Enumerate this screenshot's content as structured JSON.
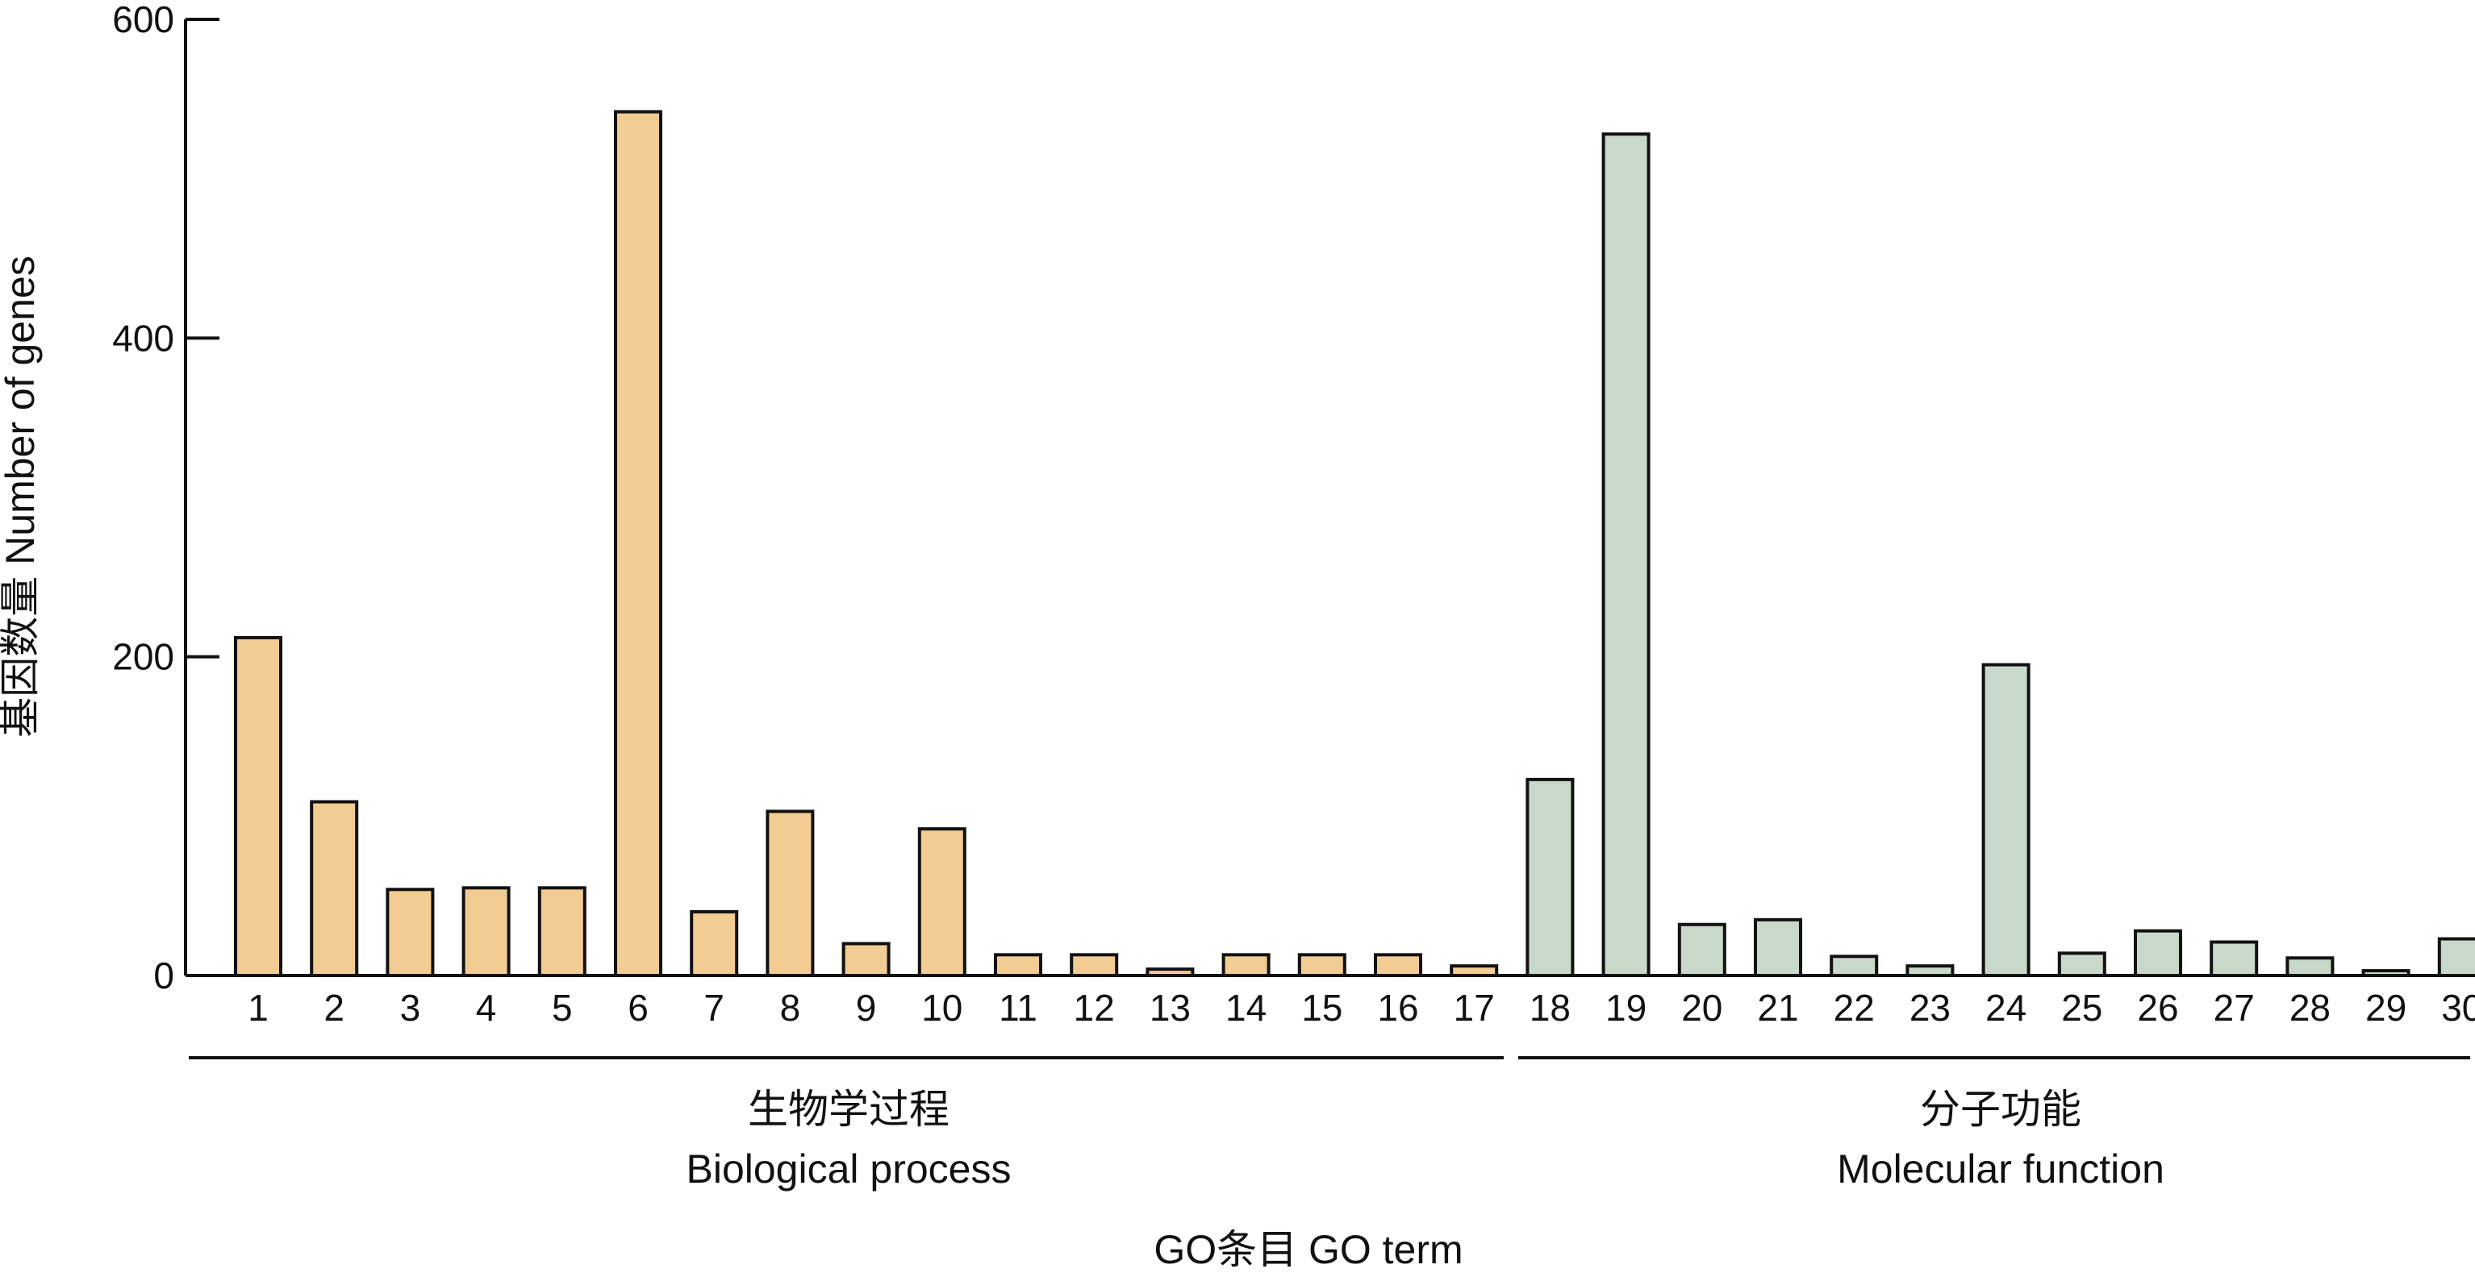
{
  "chart_data": {
    "type": "bar",
    "title": "",
    "xlabel": "GO条目 GO term",
    "ylabel": "基因数量 Number of genes",
    "ylim": [
      0,
      600
    ],
    "yticks": [
      0,
      200,
      400,
      600
    ],
    "grid": false,
    "legend": "none",
    "categories": [
      "1",
      "2",
      "3",
      "4",
      "5",
      "6",
      "7",
      "8",
      "9",
      "10",
      "11",
      "12",
      "13",
      "14",
      "15",
      "16",
      "17",
      "18",
      "19",
      "20",
      "21",
      "22",
      "23",
      "24",
      "25",
      "26",
      "27",
      "28",
      "29",
      "30"
    ],
    "values": [
      212,
      109,
      54,
      55,
      55,
      542,
      40,
      103,
      20,
      92,
      13,
      13,
      4,
      13,
      13,
      13,
      6,
      123,
      528,
      32,
      35,
      12,
      6,
      195,
      14,
      28,
      21,
      11,
      3,
      23
    ],
    "groups": [
      {
        "name_cn": "生物学过程",
        "name_en": "Biological process",
        "start": 1,
        "end": 17,
        "color": "#f2cc92"
      },
      {
        "name_cn": "分子功能",
        "name_en": "Molecular function",
        "start": 18,
        "end": 30,
        "color": "#c8d9ca"
      }
    ],
    "bar_outline_color": "#111111"
  }
}
